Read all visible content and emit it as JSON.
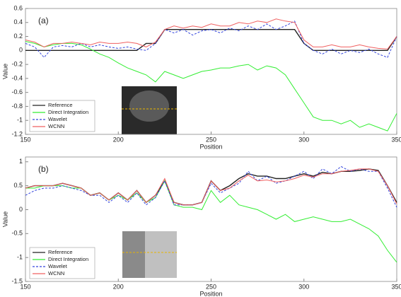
{
  "chart_data": [
    {
      "type": "line",
      "annotation": "(a)",
      "xlabel": "Position",
      "ylabel": "Value",
      "xlim": [
        150,
        350
      ],
      "xticks": [
        150,
        200,
        250,
        300,
        350
      ],
      "ylim": [
        -1.2,
        0.6
      ],
      "yticks": [
        -1.2,
        -1,
        -0.8,
        -0.6,
        -0.4,
        -0.2,
        0,
        0.2,
        0.4,
        0.6
      ],
      "legend": "lower left",
      "x": [
        150,
        155,
        160,
        165,
        170,
        175,
        180,
        185,
        190,
        195,
        200,
        205,
        210,
        215,
        220,
        225,
        230,
        235,
        240,
        245,
        250,
        255,
        260,
        265,
        270,
        275,
        280,
        285,
        290,
        295,
        300,
        305,
        310,
        315,
        320,
        325,
        330,
        335,
        340,
        345,
        350
      ],
      "series": [
        {
          "name": "Reference",
          "color": "#222222",
          "dash": "solid",
          "values": [
            0,
            0,
            0,
            0,
            0,
            0,
            0,
            0,
            0,
            0,
            0,
            0,
            0,
            0.1,
            0.1,
            0.3,
            0.3,
            0.3,
            0.3,
            0.3,
            0.3,
            0.3,
            0.3,
            0.3,
            0.3,
            0.3,
            0.3,
            0.3,
            0.3,
            0.3,
            0.1,
            0,
            0,
            0,
            0,
            0,
            0,
            0,
            0,
            0,
            0.2
          ]
        },
        {
          "name": "Direct Integration",
          "color": "#33ee33",
          "dash": "solid",
          "values": [
            0.13,
            0.1,
            0.05,
            0.08,
            0.1,
            0.1,
            0.08,
            0.02,
            -0.05,
            -0.1,
            -0.18,
            -0.25,
            -0.3,
            -0.35,
            -0.45,
            -0.3,
            -0.35,
            -0.4,
            -0.35,
            -0.3,
            -0.28,
            -0.25,
            -0.25,
            -0.22,
            -0.2,
            -0.28,
            -0.22,
            -0.25,
            -0.35,
            -0.55,
            -0.75,
            -0.95,
            -1.0,
            -1.0,
            -1.05,
            -1.0,
            -1.1,
            -1.05,
            -1.1,
            -1.15,
            -0.9
          ]
        },
        {
          "name": "Wavelet",
          "color": "#3344dd",
          "dash": "dashed",
          "values": [
            0.1,
            0.05,
            -0.1,
            0.05,
            0.07,
            0.05,
            0.1,
            0.05,
            0.08,
            0.05,
            0.03,
            0.05,
            0.02,
            0,
            0.1,
            0.3,
            0.25,
            0.3,
            0.22,
            0.28,
            0.3,
            0.25,
            0.32,
            0.28,
            0.35,
            0.3,
            0.38,
            0.3,
            0.35,
            0.42,
            0.1,
            0,
            -0.05,
            0.02,
            -0.05,
            0,
            -0.03,
            0.02,
            -0.05,
            -0.1,
            0.2
          ]
        },
        {
          "name": "WCNN",
          "color": "#f06060",
          "dash": "solid",
          "values": [
            0.15,
            0.12,
            0.05,
            0.1,
            0.1,
            0.12,
            0.1,
            0.08,
            0.12,
            0.1,
            0.1,
            0.12,
            0.1,
            0.05,
            0.12,
            0.3,
            0.35,
            0.32,
            0.35,
            0.33,
            0.38,
            0.35,
            0.35,
            0.4,
            0.38,
            0.42,
            0.4,
            0.45,
            0.42,
            0.4,
            0.15,
            0.05,
            0.05,
            0.08,
            0.05,
            0.05,
            0.08,
            0.05,
            0.03,
            0.02,
            0.2
          ]
        }
      ]
    },
    {
      "type": "line",
      "annotation": "(b)",
      "xlabel": "Position",
      "ylabel": "Value",
      "xlim": [
        150,
        350
      ],
      "xticks": [
        150,
        200,
        250,
        300,
        350
      ],
      "ylim": [
        -1.5,
        1.1
      ],
      "yticks": [
        -1.5,
        -1,
        -0.5,
        0,
        0.5,
        1
      ],
      "legend": "lower left",
      "x": [
        150,
        155,
        160,
        165,
        170,
        175,
        180,
        185,
        190,
        195,
        200,
        205,
        210,
        215,
        220,
        225,
        230,
        235,
        240,
        245,
        250,
        255,
        260,
        265,
        270,
        275,
        280,
        285,
        290,
        295,
        300,
        305,
        310,
        315,
        320,
        325,
        330,
        335,
        340,
        345,
        350
      ],
      "series": [
        {
          "name": "Reference",
          "color": "#222222",
          "dash": "solid",
          "values": [
            0.45,
            0.5,
            0.5,
            0.5,
            0.55,
            0.5,
            0.45,
            0.3,
            0.35,
            0.2,
            0.35,
            0.2,
            0.4,
            0.15,
            0.3,
            0.6,
            0.15,
            0.1,
            0.1,
            0.15,
            0.6,
            0.4,
            0.5,
            0.65,
            0.75,
            0.7,
            0.7,
            0.65,
            0.65,
            0.7,
            0.75,
            0.7,
            0.78,
            0.75,
            0.8,
            0.8,
            0.82,
            0.85,
            0.82,
            0.5,
            0.15
          ]
        },
        {
          "name": "Direct Integration",
          "color": "#33ee33",
          "dash": "solid",
          "values": [
            0.45,
            0.45,
            0.5,
            0.5,
            0.5,
            0.45,
            0.45,
            0.3,
            0.35,
            0.2,
            0.3,
            0.2,
            0.35,
            0.15,
            0.25,
            0.6,
            0.1,
            0.05,
            0.05,
            0,
            0.4,
            0.15,
            0.3,
            0.1,
            0.05,
            0,
            -0.1,
            -0.2,
            -0.1,
            -0.25,
            -0.2,
            -0.15,
            -0.2,
            -0.25,
            -0.25,
            -0.2,
            -0.3,
            -0.4,
            -0.55,
            -0.85,
            -1.1
          ]
        },
        {
          "name": "Wavelet",
          "color": "#3344dd",
          "dash": "dashed",
          "values": [
            0.3,
            0.4,
            0.45,
            0.45,
            0.5,
            0.45,
            0.4,
            0.3,
            0.3,
            0.15,
            0.3,
            0.15,
            0.35,
            0.1,
            0.25,
            0.6,
            0.1,
            0.1,
            0.1,
            0.15,
            0.55,
            0.35,
            0.45,
            0.55,
            0.8,
            0.6,
            0.7,
            0.55,
            0.6,
            0.7,
            0.8,
            0.65,
            0.85,
            0.75,
            0.9,
            0.8,
            0.85,
            0.8,
            0.8,
            0.45,
            0.05
          ]
        },
        {
          "name": "WCNN",
          "color": "#f06060",
          "dash": "solid",
          "values": [
            0.45,
            0.5,
            0.5,
            0.5,
            0.55,
            0.5,
            0.45,
            0.3,
            0.35,
            0.2,
            0.35,
            0.2,
            0.4,
            0.15,
            0.3,
            0.65,
            0.15,
            0.1,
            0.1,
            0.15,
            0.6,
            0.4,
            0.45,
            0.6,
            0.72,
            0.6,
            0.62,
            0.58,
            0.6,
            0.65,
            0.72,
            0.68,
            0.75,
            0.75,
            0.8,
            0.82,
            0.85,
            0.85,
            0.8,
            0.5,
            0.12
          ]
        }
      ]
    }
  ]
}
